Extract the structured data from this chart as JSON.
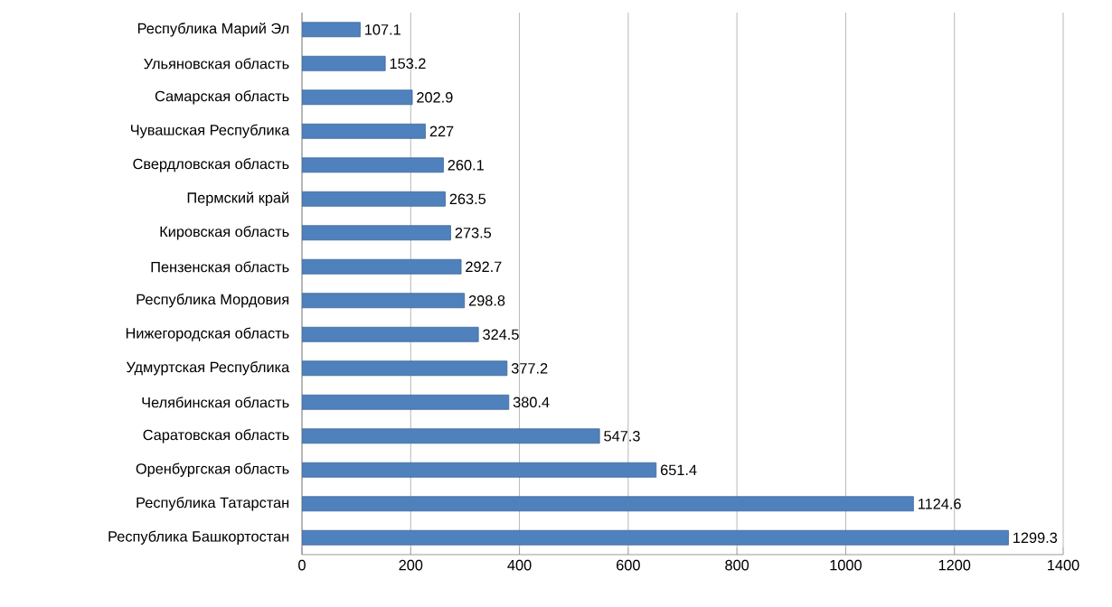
{
  "chart_data": {
    "type": "bar",
    "orientation": "horizontal",
    "categories": [
      "Республика Марий Эл",
      "Ульяновская область",
      "Самарская область",
      "Чувашская Республика",
      "Свердловская область",
      "Пермский край",
      "Кировская область",
      "Пензенская область",
      "Республика Мордовия",
      "Нижегородская область",
      "Удмуртская Республика",
      "Челябинская область",
      "Саратовская область",
      "Оренбургская область",
      "Республика Татарстан",
      "Республика Башкортостан"
    ],
    "values": [
      107.1,
      153.2,
      202.9,
      227,
      260.1,
      263.5,
      273.5,
      292.7,
      298.8,
      324.5,
      377.2,
      380.4,
      547.3,
      651.4,
      1124.6,
      1299.3
    ],
    "color": "#4f81bd",
    "xlim": [
      0,
      1400
    ],
    "xticks": [
      0,
      200,
      400,
      600,
      800,
      1000,
      1200,
      1400
    ],
    "grid": "x",
    "data_labels": true
  }
}
